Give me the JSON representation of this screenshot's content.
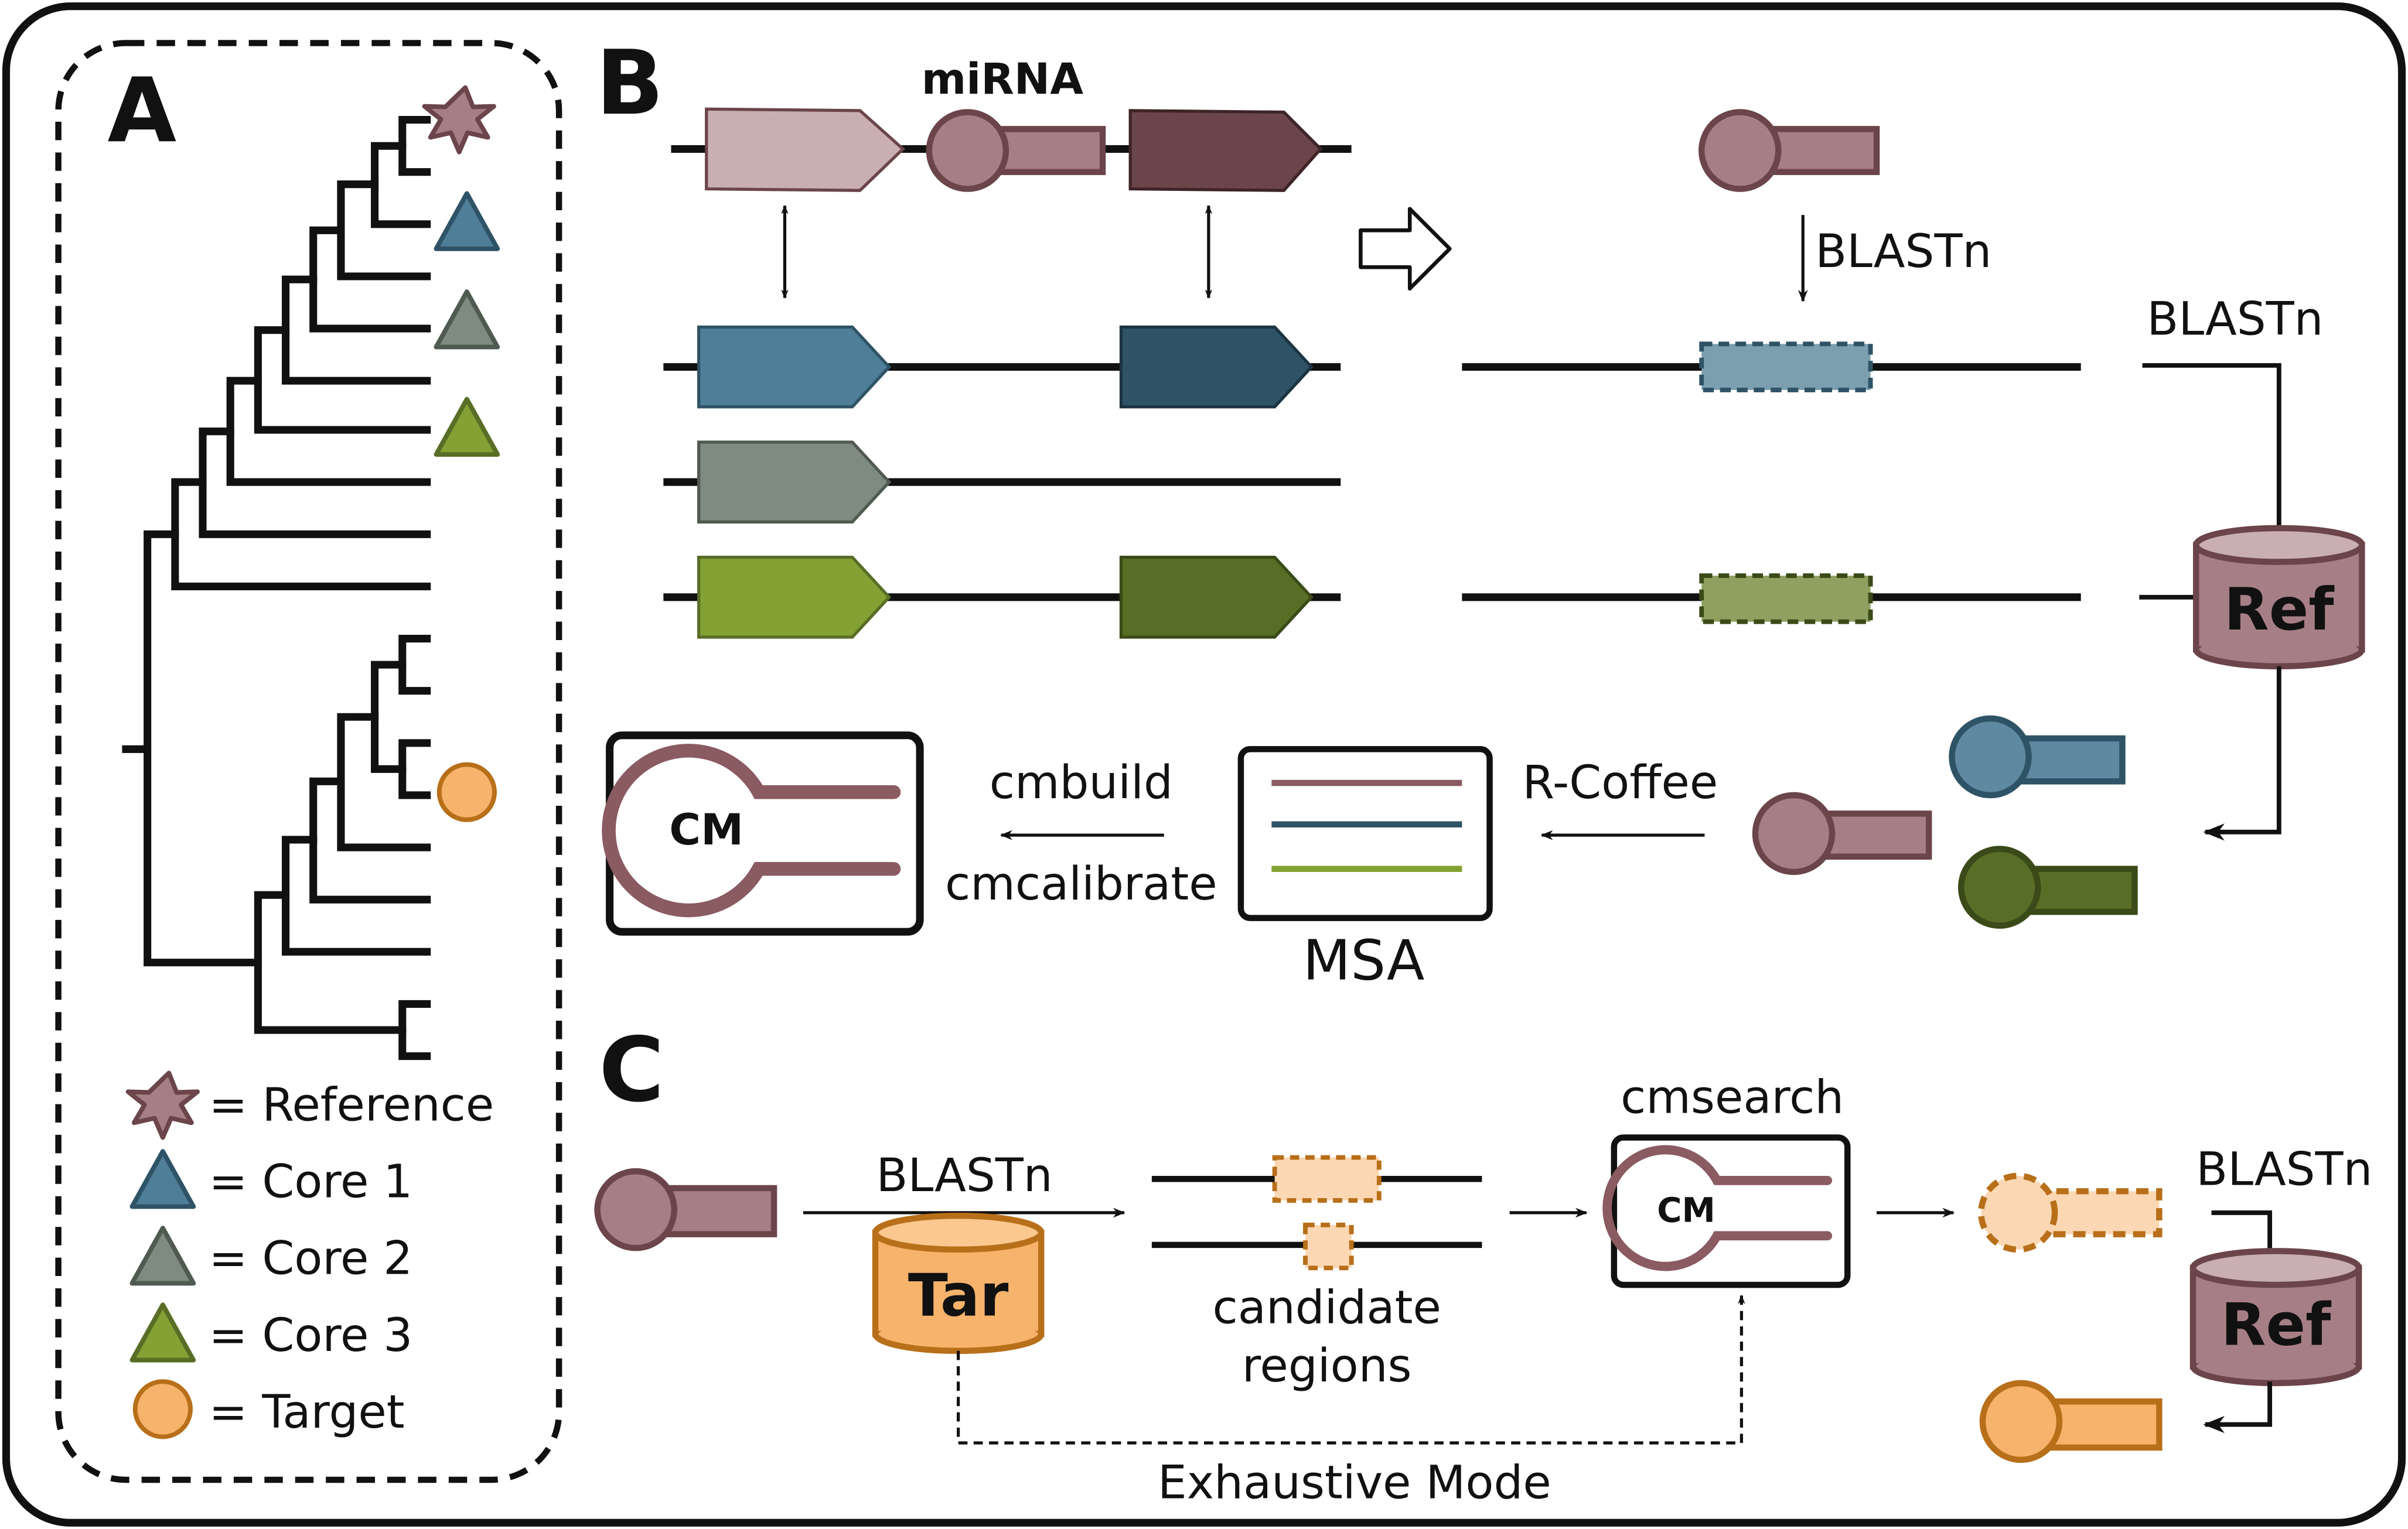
{
  "panels": {
    "a": "A",
    "b": "B",
    "c": "C"
  },
  "legend": {
    "reference": "= Reference",
    "core1": "= Core 1",
    "core2": "= Core 2",
    "core3": "= Core 3",
    "target": "= Target"
  },
  "panel_b": {
    "mirna": "miRNA",
    "blastn_top": "BLASTn",
    "blastn_right": "BLASTn",
    "ref_db": "Ref",
    "rcoffee": "R-Coffee",
    "msa": "MSA",
    "cmbuild": "cmbuild",
    "cmcalibrate": "cmcalibrate",
    "cm": "CM"
  },
  "panel_c": {
    "blastn": "BLASTn",
    "tar_db": "Tar",
    "candidate_line1": "candidate",
    "candidate_line2": "regions",
    "cmsearch": "cmsearch",
    "cm": "CM",
    "blastn_right": "BLASTn",
    "ref_db": "Ref",
    "exhaustive": "Exhaustive Mode"
  },
  "colors": {
    "reference": "#a67f86",
    "reference_light": "#c9afb1",
    "reference_dark": "#6b454a",
    "core1": "#4e7e98",
    "core1_dark": "#2f5366",
    "core2": "#7f8b80",
    "core3": "#84a233",
    "core3_dark": "#586e26",
    "target": "#f7b36b",
    "target_light": "#fcd7b3",
    "target_border": "#b86f19",
    "msa_line1": "#8a5b61",
    "msa_line2": "#2f5366",
    "msa_line3": "#84a233"
  }
}
